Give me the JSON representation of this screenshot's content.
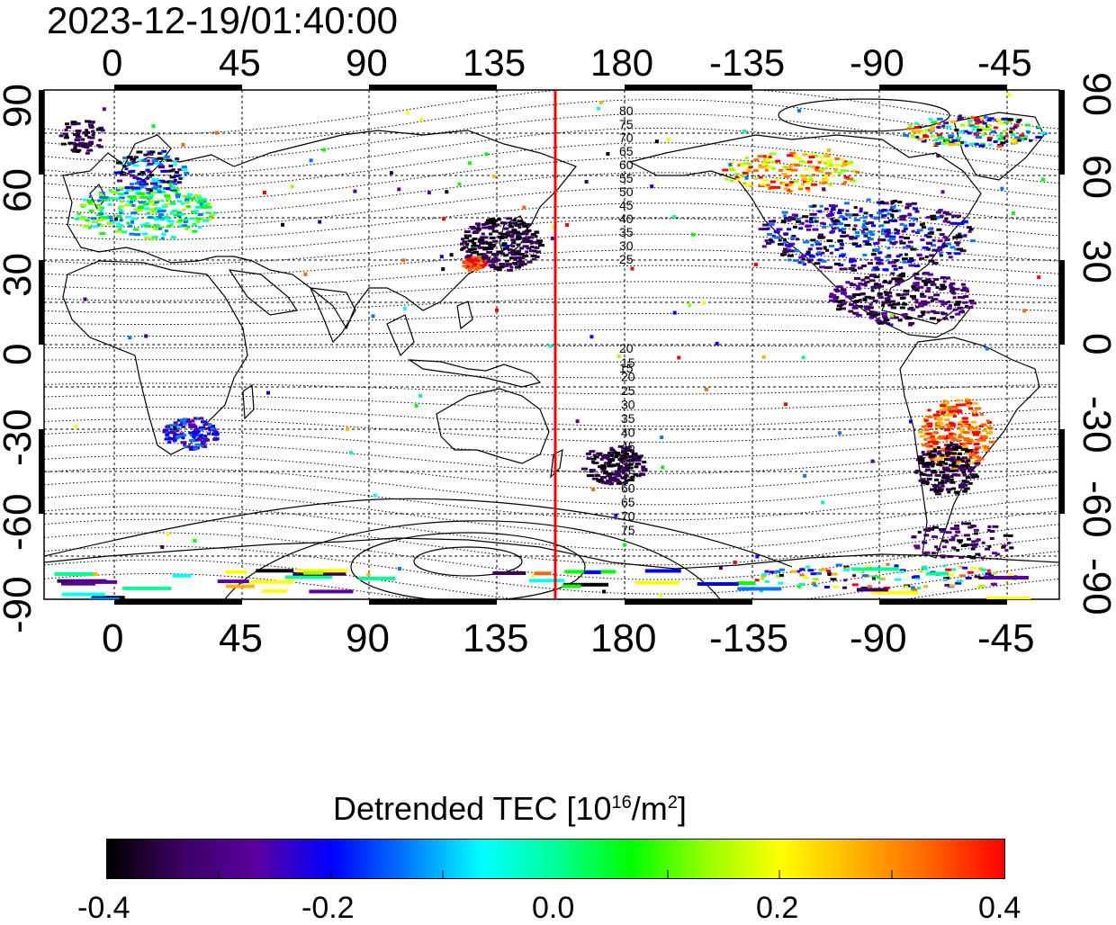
{
  "title": "2023-12-19/01:40:00",
  "colorbar": {
    "label_prefix": "Detrended TEC  [10",
    "label_exp": "16",
    "label_mid": "/m",
    "label_exp2": "2",
    "label_suffix": "]",
    "ticks": [
      "-0.4",
      "-0.2",
      "0.0",
      "0.2",
      "0.4"
    ],
    "range": [
      -0.4,
      0.4
    ],
    "colors": [
      "#000000",
      "#3c0064",
      "#5a00a0",
      "#0000ff",
      "#0078ff",
      "#00ffff",
      "#00ff96",
      "#00ff00",
      "#96ff00",
      "#ffff00",
      "#ffb400",
      "#ff6400",
      "#ff0000"
    ]
  },
  "map": {
    "projection": "equirectangular",
    "center_lon": 155,
    "lon_range": [
      -25,
      335
    ],
    "lat_range": [
      -90,
      90
    ],
    "x_ticks": [
      "0",
      "45",
      "90",
      "135",
      "180",
      "-135",
      "-90",
      "-45"
    ],
    "y_ticks_left": [
      "90",
      "60",
      "30",
      "0",
      "-30",
      "-60",
      "-90"
    ],
    "y_ticks_right": [
      "90",
      "60",
      "30",
      "0",
      "-30",
      "-60",
      "-90"
    ],
    "terminator_lon": 155,
    "terminator_color": "#ff0000",
    "contour_labels_north": [
      "80",
      "75",
      "70",
      "65",
      "60",
      "55",
      "50",
      "45",
      "40",
      "35",
      "30",
      "25",
      "20",
      "15"
    ],
    "contour_labels_south": [
      "15",
      "20",
      "25",
      "30",
      "35",
      "40",
      "45",
      "50",
      "55",
      "60",
      "65",
      "70",
      "75"
    ]
  }
}
